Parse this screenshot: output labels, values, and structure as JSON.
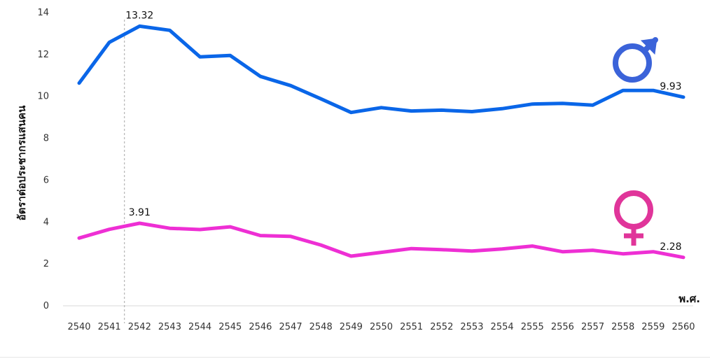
{
  "chart_data": {
    "type": "line",
    "ylabel": "อัตราต่อประชากรแสนคน",
    "xlabel": "พ.ศ.",
    "ylim": [
      0,
      14
    ],
    "yticks": [
      0,
      2,
      4,
      6,
      8,
      10,
      12,
      14
    ],
    "x": [
      "2540",
      "2541",
      "2542",
      "2543",
      "2544",
      "2545",
      "2546",
      "2547",
      "2548",
      "2549",
      "2550",
      "2551",
      "2552",
      "2553",
      "2554",
      "2555",
      "2556",
      "2557",
      "2558",
      "2559",
      "2560"
    ],
    "series": [
      {
        "key": "male",
        "color": "#0a66e8",
        "symbol": "male-symbol",
        "symbol_color": "#3b63d9",
        "values": [
          10.6,
          12.55,
          13.32,
          13.12,
          11.85,
          11.92,
          10.92,
          10.48,
          9.85,
          9.2,
          9.43,
          9.27,
          9.31,
          9.24,
          9.38,
          9.6,
          9.63,
          9.55,
          10.25,
          10.25,
          9.93
        ]
      },
      {
        "key": "female",
        "color": "#ee2fd4",
        "symbol": "female-symbol",
        "symbol_color": "#e0359a",
        "values": [
          3.2,
          3.62,
          3.91,
          3.67,
          3.61,
          3.74,
          3.32,
          3.28,
          2.87,
          2.34,
          2.52,
          2.7,
          2.65,
          2.58,
          2.68,
          2.82,
          2.55,
          2.62,
          2.45,
          2.55,
          2.28
        ]
      }
    ],
    "annotations": [
      {
        "series": 0,
        "index": 2,
        "text": "13.32"
      },
      {
        "series": 1,
        "index": 2,
        "text": "3.91"
      },
      {
        "series": 0,
        "index": 20,
        "text": "9.93"
      },
      {
        "series": 1,
        "index": 20,
        "text": "2.28"
      }
    ],
    "reference_line_x": "2541.5",
    "grid": false
  }
}
